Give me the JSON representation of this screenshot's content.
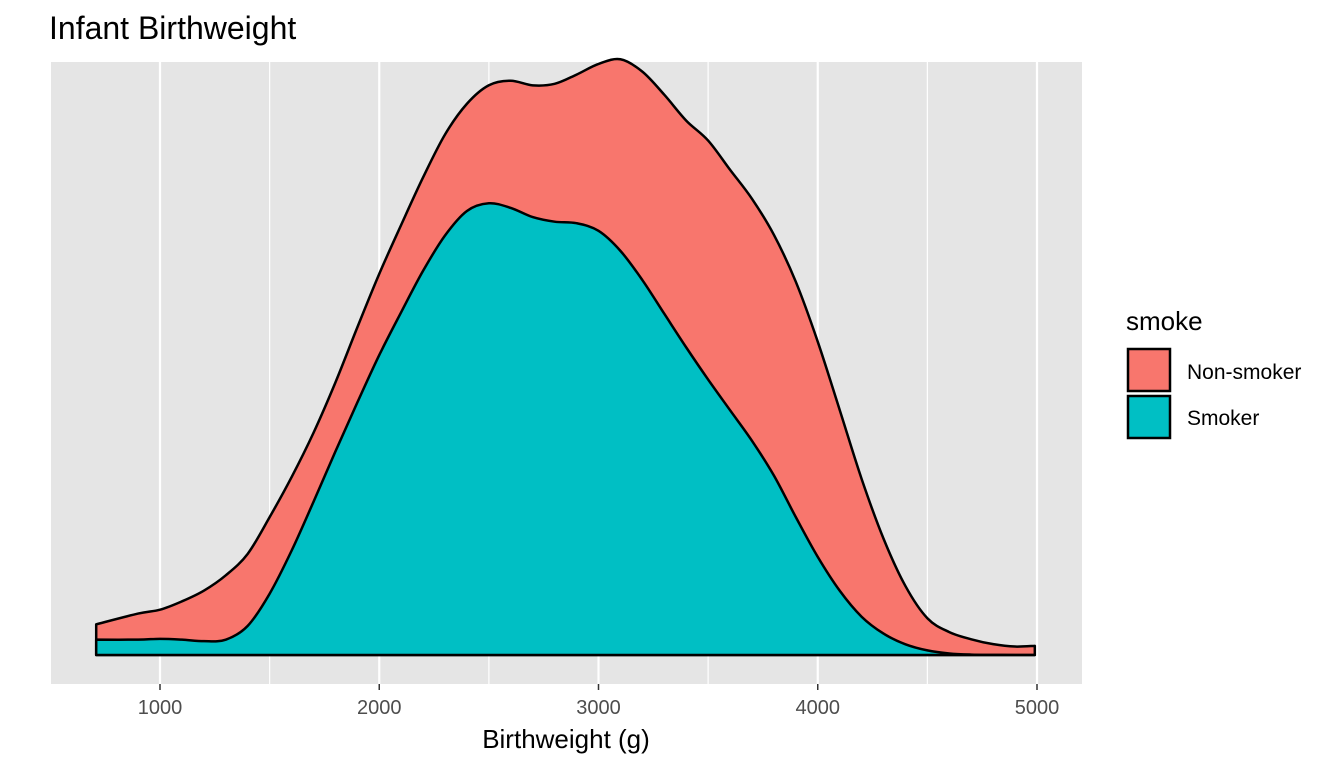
{
  "chart_data": {
    "type": "area",
    "subtype": "stacked-density",
    "title": "Infant Birthweight",
    "xlabel": "Birthweight (g)",
    "ylabel": "",
    "xlim": [
      700,
      5000
    ],
    "ylim": [
      0,
      0.00085
    ],
    "x_ticks": [
      1000,
      2000,
      3000,
      4000,
      5000
    ],
    "x_tick_labels": [
      "1000",
      "2000",
      "3000",
      "4000",
      "5000"
    ],
    "y_ticks_shown": false,
    "grid": true,
    "legend": {
      "title": "smoke",
      "position": "right",
      "entries": [
        {
          "label": "Non-smoker",
          "color": "#F8766D"
        },
        {
          "label": "Smoker",
          "color": "#00BFC4"
        }
      ]
    },
    "x": [
      709,
      900,
      1000,
      1100,
      1200,
      1300,
      1400,
      1500,
      1600,
      1700,
      1800,
      1900,
      2000,
      2100,
      2200,
      2300,
      2400,
      2500,
      2600,
      2700,
      2800,
      2900,
      3000,
      3100,
      3200,
      3300,
      3400,
      3500,
      3600,
      3700,
      3800,
      3900,
      4000,
      4100,
      4200,
      4300,
      4400,
      4500,
      4600,
      4700,
      4800,
      4900,
      4990
    ],
    "series": [
      {
        "name": "Smoker",
        "color": "#00BFC4",
        "values": [
          2.31e-05,
          2.31e-05,
          2.43e-05,
          2.31e-05,
          2.08e-05,
          2.31e-05,
          4.38e-05,
          9.22e-05,
          0.0001568,
          0.0002304,
          0.0003062,
          0.0003798,
          0.0004512,
          0.0005157,
          0.000578,
          0.0006311,
          0.000668,
          0.0006796,
          0.0006726,
          0.0006588,
          0.0006519,
          0.0006496,
          0.0006381,
          0.000608,
          0.0005641,
          0.0005134,
          0.0004628,
          0.0004144,
          0.0003683,
          0.0003223,
          0.00027,
          0.0002074,
          0.0001476,
          9.68e-05,
          5.76e-05,
          3.22e-05,
          1.61e-05,
          6.9e-06,
          2.3e-06,
          6e-07,
          2e-07,
          0,
          0
        ]
      },
      {
        "name": "Non-smoker",
        "color": "#F8766D",
        "values": [
          2.31e-05,
          3.92e-05,
          4.38e-05,
          5.76e-05,
          7.6e-05,
          9.68e-05,
          0.0001084,
          0.0001152,
          0.0001107,
          0.0001038,
          0.0001038,
          0.0001131,
          0.0001222,
          0.0001314,
          0.0001406,
          0.000152,
          0.0001613,
          0.0001775,
          0.0001913,
          0.0001982,
          0.0002074,
          0.0002236,
          0.0002511,
          0.0002882,
          0.0003135,
          0.0003295,
          0.0003412,
          0.0003595,
          0.0003617,
          0.000364,
          0.0003621,
          0.000354,
          0.0003238,
          0.000272,
          0.0002074,
          0.0001429,
          8.76e-05,
          4.84e-05,
          3.22e-05,
          2.3e-05,
          1.61e-05,
          1.27e-05,
          1.38e-05
        ]
      }
    ]
  }
}
